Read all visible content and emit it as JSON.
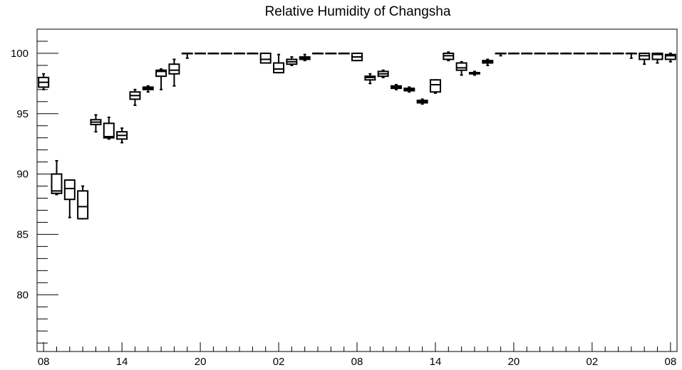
{
  "chart_data": {
    "type": "box",
    "title": "Relative Humidity of Changsha",
    "xlabel": "",
    "ylabel": "",
    "ylim": [
      75.3,
      102
    ],
    "xlim": [
      -0.5,
      48.5
    ],
    "y_ticks": [
      80,
      85,
      90,
      95,
      100
    ],
    "x_ticks": [
      {
        "pos": 0,
        "label": "08"
      },
      {
        "pos": 6,
        "label": "14"
      },
      {
        "pos": 12,
        "label": "20"
      },
      {
        "pos": 18,
        "label": "02"
      },
      {
        "pos": 24,
        "label": "08"
      },
      {
        "pos": 30,
        "label": "14"
      },
      {
        "pos": 36,
        "label": "20"
      },
      {
        "pos": 42,
        "label": "02"
      },
      {
        "pos": 48,
        "label": "08"
      }
    ],
    "grid": false,
    "boxes": [
      {
        "t": 0,
        "min": 97.0,
        "q1": 97.2,
        "median": 97.6,
        "q3": 98.0,
        "max": 98.3
      },
      {
        "t": 1,
        "min": 88.3,
        "q1": 88.4,
        "median": 88.6,
        "q3": 90.0,
        "max": 91.1
      },
      {
        "t": 2,
        "min": 86.4,
        "q1": 87.9,
        "median": 88.8,
        "q3": 89.5,
        "max": 89.5
      },
      {
        "t": 3,
        "min": 86.3,
        "q1": 86.3,
        "median": 87.3,
        "q3": 88.6,
        "max": 89.0
      },
      {
        "t": 4,
        "min": 93.5,
        "q1": 94.1,
        "median": 94.3,
        "q3": 94.5,
        "max": 94.9
      },
      {
        "t": 5,
        "min": 92.9,
        "q1": 93.0,
        "median": 93.1,
        "q3": 94.2,
        "max": 94.7
      },
      {
        "t": 6,
        "min": 92.6,
        "q1": 92.9,
        "median": 93.2,
        "q3": 93.5,
        "max": 93.8
      },
      {
        "t": 7,
        "min": 95.7,
        "q1": 96.2,
        "median": 96.5,
        "q3": 96.8,
        "max": 97.0
      },
      {
        "t": 8,
        "min": 96.8,
        "q1": 97.0,
        "median": 97.1,
        "q3": 97.2,
        "max": 97.3
      },
      {
        "t": 9,
        "min": 97.0,
        "q1": 98.1,
        "median": 98.5,
        "q3": 98.6,
        "max": 98.7
      },
      {
        "t": 10,
        "min": 97.3,
        "q1": 98.3,
        "median": 98.6,
        "q3": 99.1,
        "max": 99.5
      },
      {
        "t": 11,
        "min": 99.6,
        "q1": 100.0,
        "median": 100.0,
        "q3": 100.0,
        "max": 100.0
      },
      {
        "t": 12,
        "min": 100.0,
        "q1": 100.0,
        "median": 100.0,
        "q3": 100.0,
        "max": 100.0
      },
      {
        "t": 13,
        "min": 100.0,
        "q1": 100.0,
        "median": 100.0,
        "q3": 100.0,
        "max": 100.0
      },
      {
        "t": 14,
        "min": 100.0,
        "q1": 100.0,
        "median": 100.0,
        "q3": 100.0,
        "max": 100.0
      },
      {
        "t": 15,
        "min": 100.0,
        "q1": 100.0,
        "median": 100.0,
        "q3": 100.0,
        "max": 100.0
      },
      {
        "t": 16,
        "min": 100.0,
        "q1": 100.0,
        "median": 100.0,
        "q3": 100.0,
        "max": 100.0
      },
      {
        "t": 17,
        "min": 99.2,
        "q1": 99.2,
        "median": 99.5,
        "q3": 100.0,
        "max": 100.0
      },
      {
        "t": 18,
        "min": 98.4,
        "q1": 98.4,
        "median": 98.7,
        "q3": 99.2,
        "max": 99.9
      },
      {
        "t": 19,
        "min": 99.0,
        "q1": 99.1,
        "median": 99.3,
        "q3": 99.5,
        "max": 99.7
      },
      {
        "t": 20,
        "min": 99.4,
        "q1": 99.5,
        "median": 99.6,
        "q3": 99.7,
        "max": 99.9
      },
      {
        "t": 21,
        "min": 100.0,
        "q1": 100.0,
        "median": 100.0,
        "q3": 100.0,
        "max": 100.0
      },
      {
        "t": 22,
        "min": 100.0,
        "q1": 100.0,
        "median": 100.0,
        "q3": 100.0,
        "max": 100.0
      },
      {
        "t": 23,
        "min": 100.0,
        "q1": 100.0,
        "median": 100.0,
        "q3": 100.0,
        "max": 100.0
      },
      {
        "t": 24,
        "min": 99.4,
        "q1": 99.4,
        "median": 99.7,
        "q3": 100.0,
        "max": 100.0
      },
      {
        "t": 25,
        "min": 97.5,
        "q1": 97.8,
        "median": 98.0,
        "q3": 98.1,
        "max": 98.3
      },
      {
        "t": 26,
        "min": 98.0,
        "q1": 98.1,
        "median": 98.3,
        "q3": 98.5,
        "max": 98.6
      },
      {
        "t": 27,
        "min": 97.0,
        "q1": 97.1,
        "median": 97.2,
        "q3": 97.3,
        "max": 97.4
      },
      {
        "t": 28,
        "min": 96.8,
        "q1": 96.9,
        "median": 97.0,
        "q3": 97.1,
        "max": 97.2
      },
      {
        "t": 29,
        "min": 95.8,
        "q1": 95.9,
        "median": 96.0,
        "q3": 96.1,
        "max": 96.2
      },
      {
        "t": 30,
        "min": 96.7,
        "q1": 96.8,
        "median": 97.4,
        "q3": 97.8,
        "max": 97.8
      },
      {
        "t": 31,
        "min": 99.4,
        "q1": 99.5,
        "median": 99.8,
        "q3": 100.0,
        "max": 100.1
      },
      {
        "t": 32,
        "min": 98.2,
        "q1": 98.6,
        "median": 98.8,
        "q3": 99.2,
        "max": 99.3
      },
      {
        "t": 33,
        "min": 98.2,
        "q1": 98.3,
        "median": 98.4,
        "q3": 98.4,
        "max": 98.5
      },
      {
        "t": 34,
        "min": 99.0,
        "q1": 99.2,
        "median": 99.3,
        "q3": 99.4,
        "max": 99.5
      },
      {
        "t": 35,
        "min": 99.8,
        "q1": 100.0,
        "median": 100.0,
        "q3": 100.0,
        "max": 100.0
      },
      {
        "t": 36,
        "min": 100.0,
        "q1": 100.0,
        "median": 100.0,
        "q3": 100.0,
        "max": 100.0
      },
      {
        "t": 37,
        "min": 100.0,
        "q1": 100.0,
        "median": 100.0,
        "q3": 100.0,
        "max": 100.0
      },
      {
        "t": 38,
        "min": 100.0,
        "q1": 100.0,
        "median": 100.0,
        "q3": 100.0,
        "max": 100.0
      },
      {
        "t": 39,
        "min": 100.0,
        "q1": 100.0,
        "median": 100.0,
        "q3": 100.0,
        "max": 100.0
      },
      {
        "t": 40,
        "min": 100.0,
        "q1": 100.0,
        "median": 100.0,
        "q3": 100.0,
        "max": 100.0
      },
      {
        "t": 41,
        "min": 100.0,
        "q1": 100.0,
        "median": 100.0,
        "q3": 100.0,
        "max": 100.0
      },
      {
        "t": 42,
        "min": 100.0,
        "q1": 100.0,
        "median": 100.0,
        "q3": 100.0,
        "max": 100.0
      },
      {
        "t": 43,
        "min": 100.0,
        "q1": 100.0,
        "median": 100.0,
        "q3": 100.0,
        "max": 100.0
      },
      {
        "t": 44,
        "min": 100.0,
        "q1": 100.0,
        "median": 100.0,
        "q3": 100.0,
        "max": 100.0
      },
      {
        "t": 45,
        "min": 99.6,
        "q1": 100.0,
        "median": 100.0,
        "q3": 100.0,
        "max": 100.0
      },
      {
        "t": 46,
        "min": 99.1,
        "q1": 99.5,
        "median": 99.8,
        "q3": 100.0,
        "max": 100.0
      },
      {
        "t": 47,
        "min": 99.2,
        "q1": 99.5,
        "median": 99.9,
        "q3": 100.0,
        "max": 100.0
      },
      {
        "t": 48,
        "min": 99.3,
        "q1": 99.5,
        "median": 99.8,
        "q3": 99.9,
        "max": 100.0
      }
    ]
  }
}
